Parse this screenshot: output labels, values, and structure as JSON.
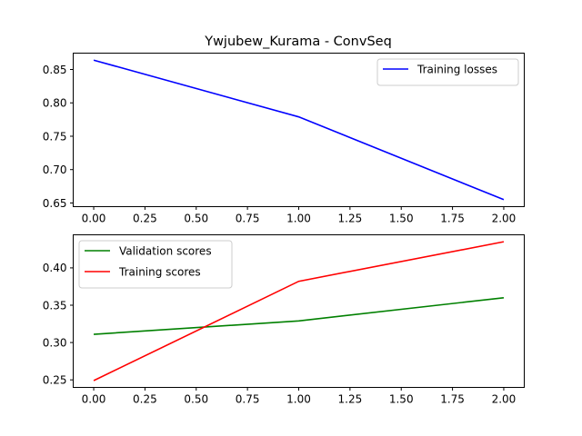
{
  "chart_data": [
    {
      "type": "line",
      "title": "Ywjubew_Kurama - ConvSeq",
      "xlabel": "",
      "ylabel": "",
      "xlim": [
        -0.1,
        2.1
      ],
      "ylim": [
        0.6445,
        0.8745
      ],
      "xticks": [
        0.0,
        0.25,
        0.5,
        0.75,
        1.0,
        1.25,
        1.5,
        1.75,
        2.0
      ],
      "xtick_labels": [
        "0.00",
        "0.25",
        "0.50",
        "0.75",
        "1.00",
        "1.25",
        "1.50",
        "1.75",
        "2.00"
      ],
      "yticks": [
        0.65,
        0.7,
        0.75,
        0.8,
        0.85
      ],
      "ytick_labels": [
        "0.65",
        "0.70",
        "0.75",
        "0.80",
        "0.85"
      ],
      "x": [
        0,
        1,
        2
      ],
      "series": [
        {
          "name": "Training losses",
          "values": [
            0.864,
            0.779,
            0.655
          ],
          "color": "#0000ff"
        }
      ],
      "legend": "top-right",
      "grid": false
    },
    {
      "type": "line",
      "title": "",
      "xlabel": "",
      "ylabel": "",
      "xlim": [
        -0.1,
        2.1
      ],
      "ylim": [
        0.2399,
        0.4443
      ],
      "xticks": [
        0.0,
        0.25,
        0.5,
        0.75,
        1.0,
        1.25,
        1.5,
        1.75,
        2.0
      ],
      "xtick_labels": [
        "0.00",
        "0.25",
        "0.50",
        "0.75",
        "1.00",
        "1.25",
        "1.50",
        "1.75",
        "2.00"
      ],
      "yticks": [
        0.25,
        0.3,
        0.35,
        0.4
      ],
      "ytick_labels": [
        "0.25",
        "0.30",
        "0.35",
        "0.40"
      ],
      "x": [
        0,
        1,
        2
      ],
      "series": [
        {
          "name": "Validation scores",
          "values": [
            0.311,
            0.329,
            0.36
          ],
          "color": "#008000"
        },
        {
          "name": "Training scores",
          "values": [
            0.249,
            0.382,
            0.435
          ],
          "color": "#ff0000"
        }
      ],
      "legend": "top-left",
      "grid": false
    }
  ]
}
